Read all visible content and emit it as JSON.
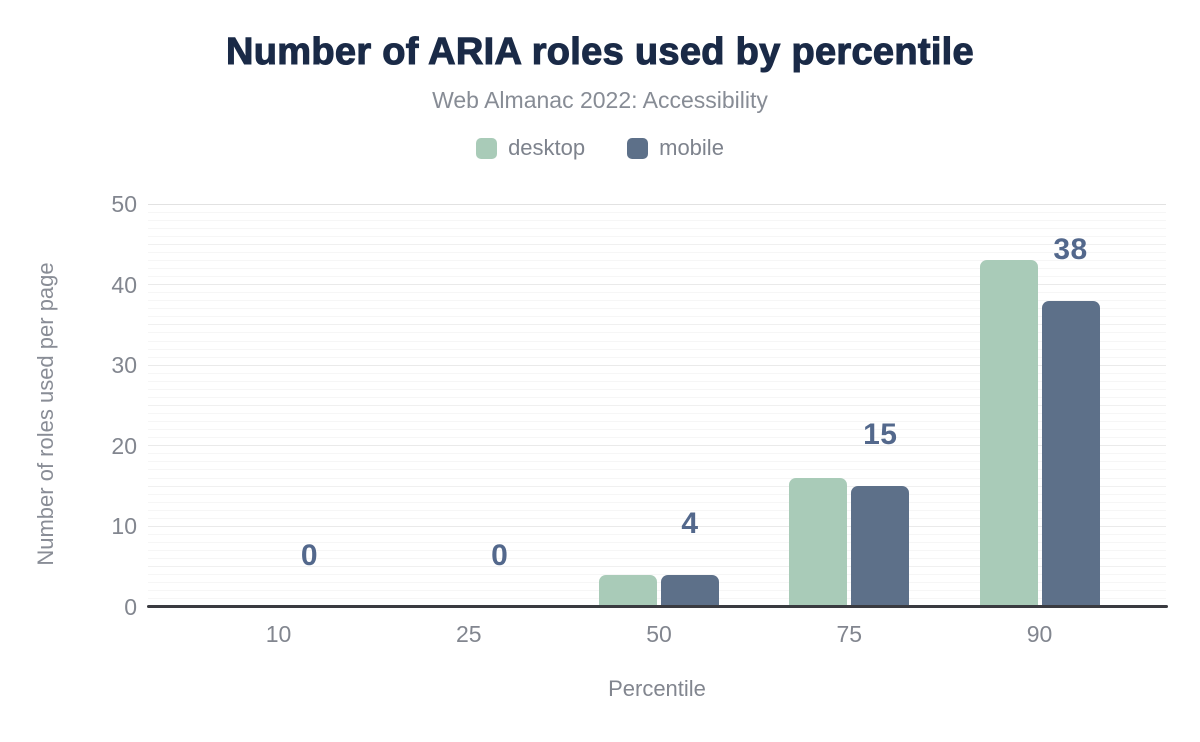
{
  "chart_data": {
    "type": "bar",
    "title": "Number of ARIA roles used by percentile",
    "subtitle": "Web Almanac 2022: Accessibility",
    "xlabel": "Percentile",
    "ylabel": "Number of roles used per page",
    "categories": [
      "10",
      "25",
      "50",
      "75",
      "90"
    ],
    "series": [
      {
        "name": "desktop",
        "color": "#a9cbb8",
        "values": [
          0,
          0,
          4,
          16,
          43
        ]
      },
      {
        "name": "mobile",
        "color": "#5d7089",
        "values": [
          0,
          0,
          4,
          15,
          38
        ]
      }
    ],
    "data_labels": {
      "series": "mobile",
      "values": [
        "0",
        "0",
        "4",
        "15",
        "38"
      ],
      "color": "#53688c"
    },
    "ylim": [
      0,
      50
    ],
    "yticks": [
      0,
      10,
      20,
      30,
      40,
      50
    ],
    "grid": "horizontal-minor",
    "legend_position": "top",
    "title_color": "#1a2a47",
    "axis_text_color": "#82868f",
    "axis_line_color": "#3a3b40"
  }
}
